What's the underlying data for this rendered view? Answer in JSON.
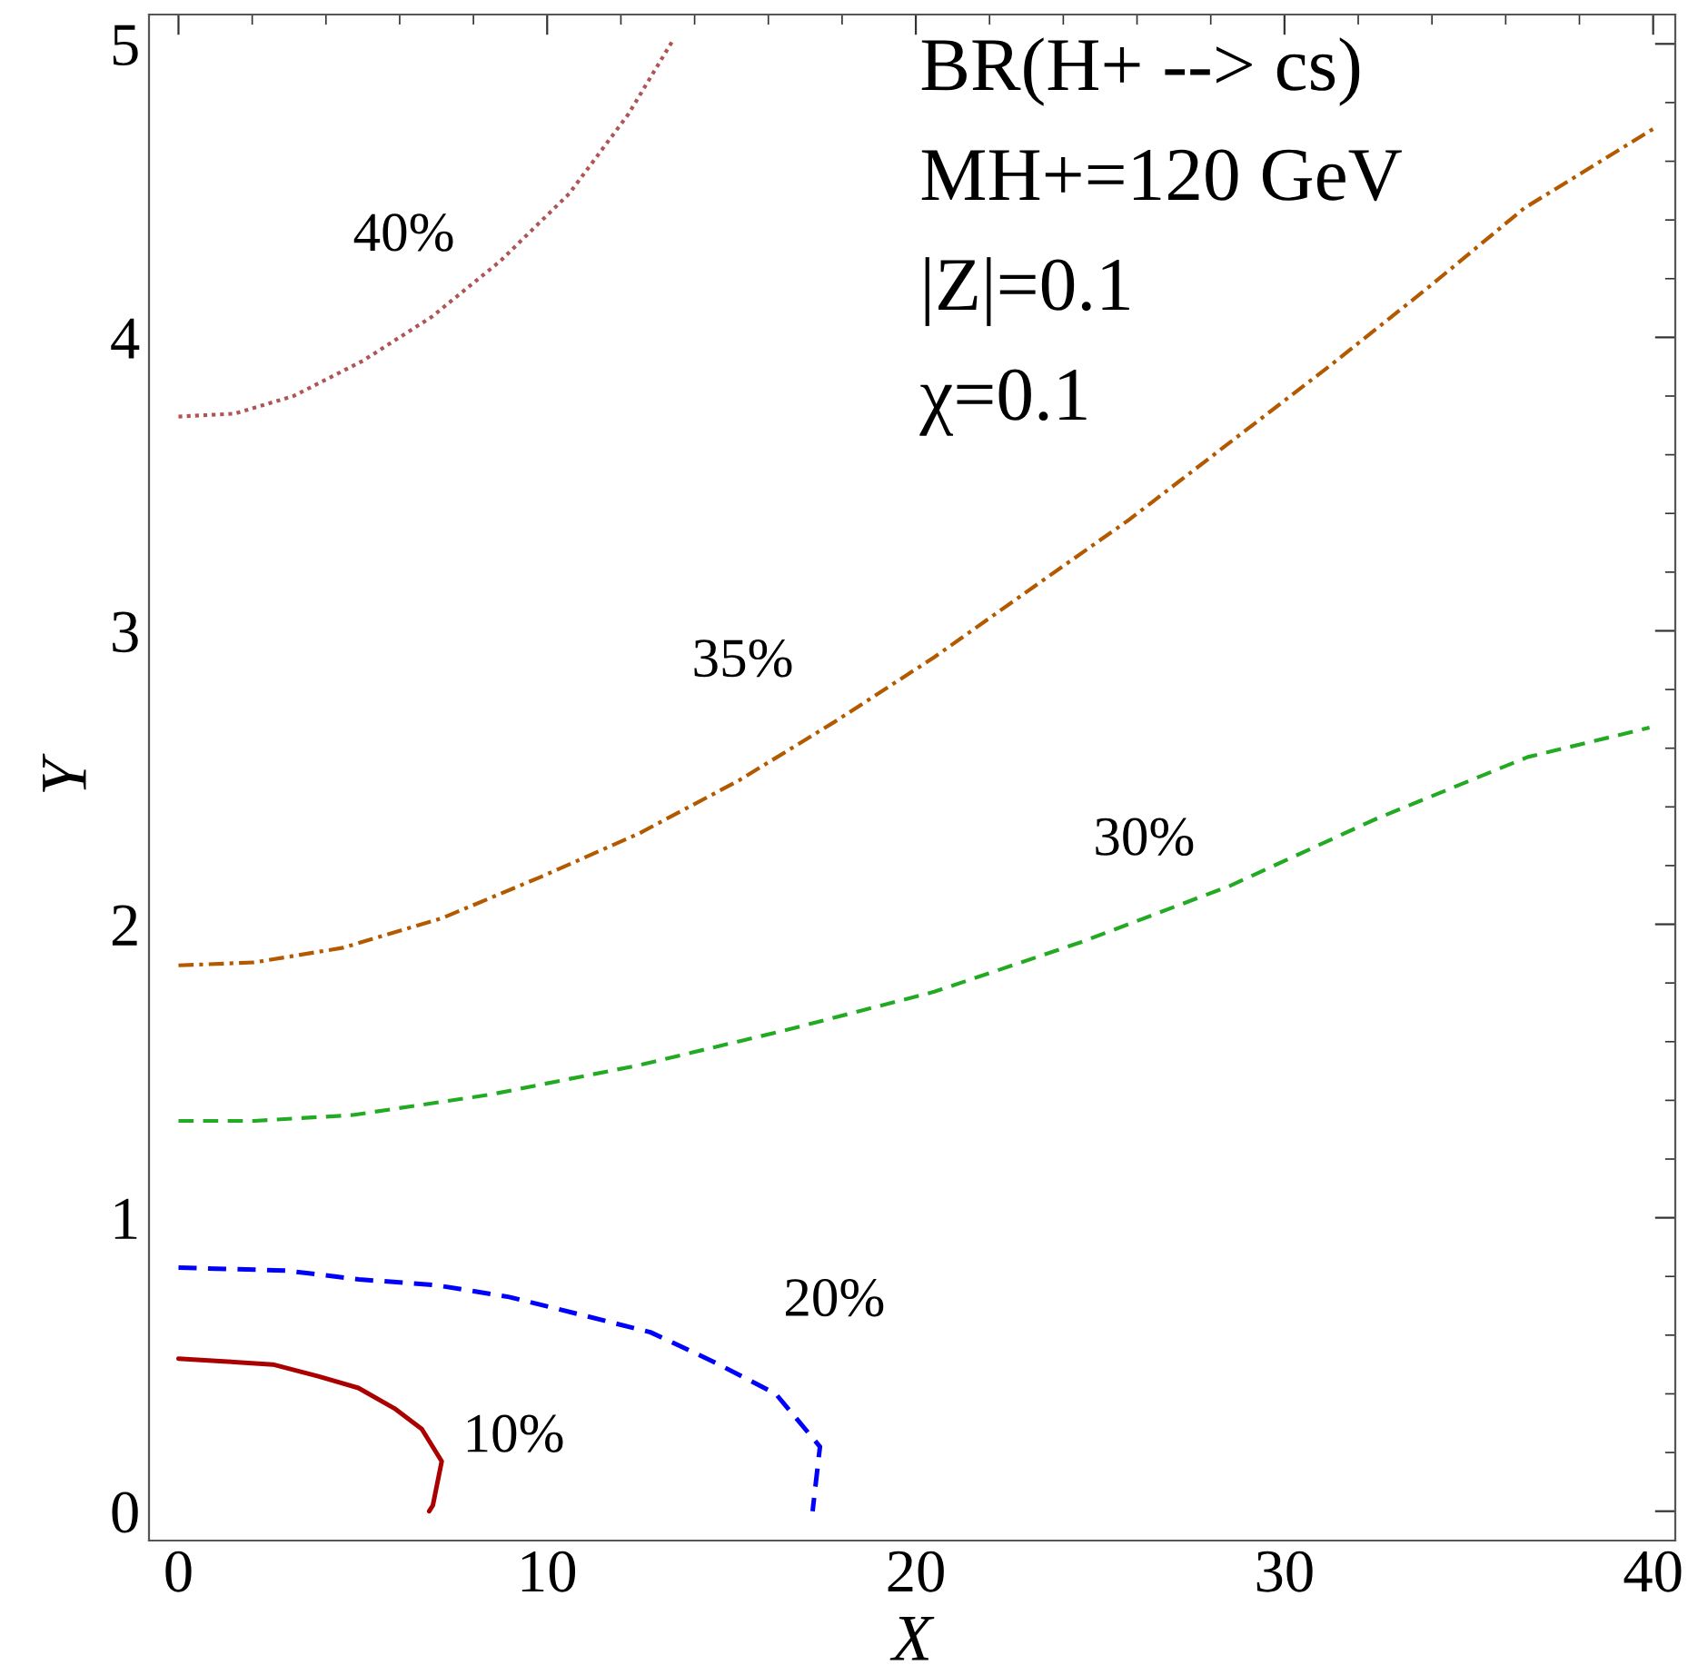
{
  "chart_data": {
    "type": "line",
    "xlabel": "X",
    "ylabel": "Y",
    "xlim": [
      -0.8,
      40.6
    ],
    "ylim": [
      -0.1,
      5.1
    ],
    "xticks": [
      0,
      {
        "value": 2,
        "label": null
      },
      {
        "value": 4,
        "label": null
      },
      {
        "value": 6,
        "label": null
      },
      {
        "value": 8,
        "label": null
      },
      10,
      {
        "value": 12,
        "label": null
      },
      {
        "value": 14,
        "label": null
      },
      {
        "value": 16,
        "label": null
      },
      {
        "value": 18,
        "label": null
      },
      20,
      {
        "value": 22,
        "label": null
      },
      {
        "value": 24,
        "label": null
      },
      {
        "value": 26,
        "label": null
      },
      {
        "value": 28,
        "label": null
      },
      30,
      {
        "value": 32,
        "label": null
      },
      {
        "value": 34,
        "label": null
      },
      {
        "value": 36,
        "label": null
      },
      {
        "value": 38,
        "label": null
      },
      40
    ],
    "yticks": [
      0,
      {
        "value": 0.2,
        "label": null
      },
      {
        "value": 0.4,
        "label": null
      },
      {
        "value": 0.6,
        "label": null
      },
      {
        "value": 0.8,
        "label": null
      },
      1,
      {
        "value": 1.2,
        "label": null
      },
      {
        "value": 1.4,
        "label": null
      },
      {
        "value": 1.6,
        "label": null
      },
      {
        "value": 1.8,
        "label": null
      },
      2,
      {
        "value": 2.2,
        "label": null
      },
      {
        "value": 2.4,
        "label": null
      },
      {
        "value": 2.6,
        "label": null
      },
      {
        "value": 2.8,
        "label": null
      },
      3,
      {
        "value": 3.2,
        "label": null
      },
      {
        "value": 3.4,
        "label": null
      },
      {
        "value": 3.6,
        "label": null
      },
      {
        "value": 3.8,
        "label": null
      },
      4,
      {
        "value": 4.2,
        "label": null
      },
      {
        "value": 4.4,
        "label": null
      },
      {
        "value": 4.6,
        "label": null
      },
      {
        "value": 4.8,
        "label": null
      },
      5
    ],
    "grid": false,
    "legend": false,
    "marker": "none",
    "series": [
      {
        "name": "10%",
        "color": "#aa0000",
        "line_style": "solid",
        "x": [
          0,
          1.33,
          2.56,
          3.79,
          4.88,
          5.86,
          6.6,
          7.14,
          6.9,
          6.8
        ],
        "values": [
          0.52,
          0.51,
          0.5,
          0.46,
          0.42,
          0.35,
          0.28,
          0.17,
          0.02,
          0.0
        ]
      },
      {
        "name": "20%",
        "color": "#0000ff",
        "line_style": "dashed",
        "x": [
          0,
          2.9,
          4.9,
          7.0,
          8.97,
          10.9,
          12.8,
          14.5,
          16.2,
          17.4,
          17.2
        ],
        "values": [
          0.83,
          0.82,
          0.79,
          0.77,
          0.73,
          0.67,
          0.61,
          0.51,
          0.4,
          0.22,
          0.0
        ]
      },
      {
        "name": "30%",
        "color": "#22aa22",
        "line_style": "dashed",
        "x": [
          0,
          2.05,
          4.73,
          8.47,
          12.5,
          16.5,
          20.5,
          24.5,
          28.5,
          32.5,
          36.6,
          39.9
        ],
        "values": [
          1.33,
          1.33,
          1.35,
          1.42,
          1.52,
          1.64,
          1.77,
          1.94,
          2.13,
          2.36,
          2.57,
          2.67
        ]
      },
      {
        "name": "35%",
        "color": "#b35a00",
        "line_style": "dashdot",
        "x": [
          0,
          2.05,
          4.46,
          7.13,
          9.8,
          12.5,
          15.2,
          17.8,
          20.5,
          23.2,
          25.8,
          28.5,
          31.2,
          33.9,
          36.5,
          40
        ],
        "values": [
          1.86,
          1.87,
          1.92,
          2.02,
          2.16,
          2.31,
          2.49,
          2.69,
          2.91,
          3.15,
          3.38,
          3.64,
          3.9,
          4.17,
          4.44,
          4.71
        ]
      },
      {
        "name": "40%",
        "color": "#b05555",
        "line_style": "dotted",
        "x": [
          0,
          1.52,
          3.12,
          5.0,
          6.87,
          8.73,
          10.6,
          12.2,
          13.4
        ],
        "values": [
          3.73,
          3.74,
          3.8,
          3.92,
          4.07,
          4.26,
          4.49,
          4.76,
          5.01
        ]
      }
    ],
    "annotations": [
      "BR(H+ --> cs)",
      "MH+=120 GeV",
      "|Z|=0.1",
      "χ=0.1"
    ]
  }
}
